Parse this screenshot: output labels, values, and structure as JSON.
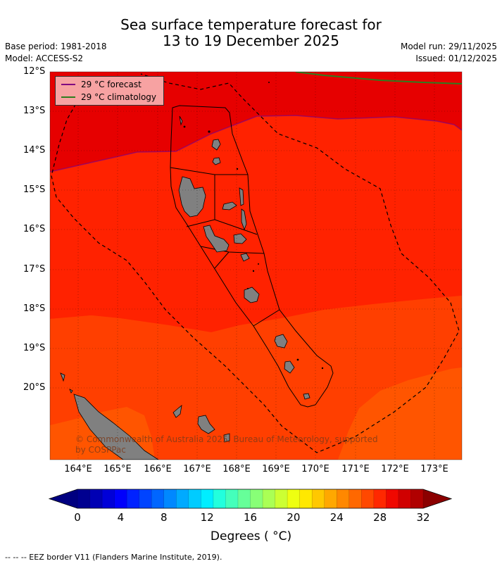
{
  "header": {
    "title_line1": "Sea surface temperature forecast for",
    "title_line2": "13 to 19 December 2025",
    "base_period": "Base period: 1981-2018",
    "model": "Model: ACCESS-S2",
    "model_run": "Model run: 29/11/2025",
    "issued": "Issued: 01/12/2025"
  },
  "map": {
    "lat_labels": [
      "12°S",
      "13°S",
      "14°S",
      "15°S",
      "16°S",
      "17°S",
      "18°S",
      "19°S",
      "20°S"
    ],
    "lon_labels": [
      "164°E",
      "165°E",
      "166°E",
      "167°E",
      "168°E",
      "169°E",
      "170°E",
      "171°E",
      "172°E",
      "173°E"
    ],
    "legend": {
      "forecast": "29 °C  forecast",
      "climatology": "29 °C  climatology",
      "forecast_color": "#800080",
      "climatology_color": "#2e7d1f"
    },
    "copyright": "© Commonwealth of Australia 2025, Bureau of Meteorology, supported by COSPPac",
    "colors": {
      "band_29_30": "#e60000",
      "band_28_29": "#ff2200",
      "band_27_28": "#ff3f00",
      "band_26_27": "#ff5500",
      "land": "#808080"
    }
  },
  "colorbar": {
    "tick_labels": [
      "0",
      "4",
      "8",
      "12",
      "16",
      "20",
      "24",
      "28",
      "32"
    ],
    "title": "Degrees ( °C)",
    "colors": [
      "#000090",
      "#0000b4",
      "#0000d8",
      "#0000fc",
      "#0022ff",
      "#0044ff",
      "#0066ff",
      "#0088ff",
      "#00aaff",
      "#00ccff",
      "#00eeff",
      "#22ffdd",
      "#44ffbb",
      "#66ff99",
      "#88ff77",
      "#aaff55",
      "#ccff33",
      "#eeff11",
      "#ffe800",
      "#ffc800",
      "#ffa800",
      "#ff8800",
      "#ff6800",
      "#ff4800",
      "#ff2800",
      "#f00800",
      "#d00000",
      "#b00000"
    ],
    "under_color": "#000080",
    "over_color": "#8b0000"
  },
  "footer": {
    "eez_note": "--  --  -- EEZ border V11 (Flanders Marine Institute, 2019)."
  }
}
